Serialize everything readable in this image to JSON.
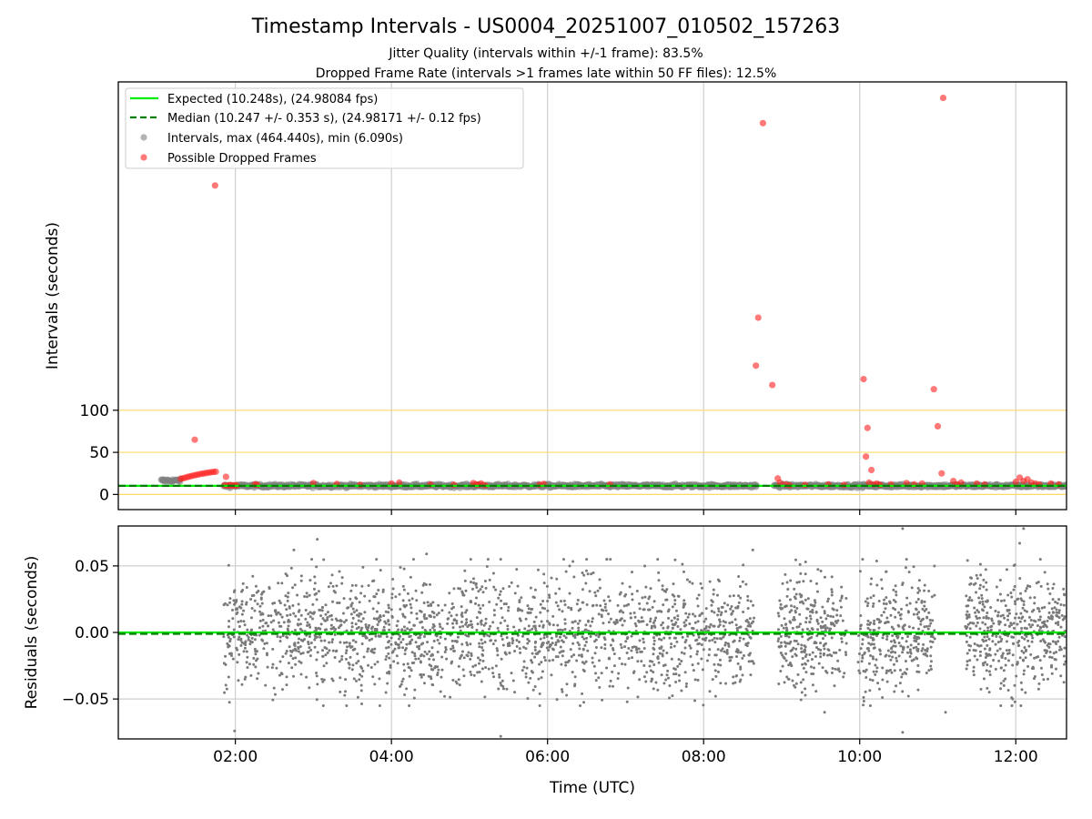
{
  "chart_data": {
    "title": "Timestamp Intervals - US0004_20251007_010502_157263",
    "subtitle_lines": [
      "Jitter Quality (intervals within +/-1 frame): 83.5%",
      "Dropped Frame Rate (intervals >1 frames late within 50 FF files): 12.5%"
    ],
    "xlabel": "Time (UTC)",
    "xlim": [
      0.5,
      12.65
    ],
    "xticks": [
      {
        "value": 2,
        "label": "02:00"
      },
      {
        "value": 4,
        "label": "04:00"
      },
      {
        "value": 6,
        "label": "06:00"
      },
      {
        "value": 8,
        "label": "08:00"
      },
      {
        "value": 10,
        "label": "10:00"
      },
      {
        "value": 12,
        "label": "12:00"
      }
    ],
    "panels": [
      {
        "type": "scatter",
        "ylabel": "Intervals (seconds)",
        "ylim": [
          -18,
          490
        ],
        "yticks": [
          {
            "value": 0,
            "label": "0"
          },
          {
            "value": 50,
            "label": "50"
          },
          {
            "value": 100,
            "label": "100"
          }
        ],
        "hlines": [
          0,
          50,
          100
        ],
        "hline_color": "#ffd966",
        "grid_x": true,
        "legend_placement": "top-left",
        "series": [
          {
            "name": "Expected (10.248s), (24.98084 fps)",
            "kind": "line",
            "style": "solid",
            "color": "#00ee00",
            "y": 10.248
          },
          {
            "name": "Median (10.247 +/- 0.353 s), (24.98171 +/- 0.12 fps)",
            "kind": "line",
            "style": "dashed",
            "color": "#007f00",
            "y": 10.247
          },
          {
            "name": "Intervals, max (464.440s), min (6.090s)",
            "kind": "scatter",
            "color": "#808080",
            "bands": [
              {
                "x_start": 1.05,
                "x_end": 1.3,
                "y": 16.5
              },
              {
                "x_start": 1.85,
                "x_end": 8.68,
                "y": 10.25
              },
              {
                "x_start": 8.9,
                "x_end": 12.65,
                "y": 10.25
              }
            ]
          },
          {
            "name": "Possible Dropped Frames",
            "kind": "scatter",
            "color": "#ff2020",
            "points": [
              [
                1.3,
                18.5
              ],
              [
                1.33,
                19.2
              ],
              [
                1.36,
                20.0
              ],
              [
                1.39,
                20.8
              ],
              [
                1.42,
                21.5
              ],
              [
                1.45,
                22.2
              ],
              [
                1.48,
                22.8
              ],
              [
                1.51,
                23.4
              ],
              [
                1.54,
                24.0
              ],
              [
                1.57,
                24.6
              ],
              [
                1.6,
                25.0
              ],
              [
                1.63,
                25.5
              ],
              [
                1.66,
                26.0
              ],
              [
                1.69,
                26.4
              ],
              [
                1.72,
                26.8
              ],
              [
                1.75,
                27.0
              ],
              [
                1.48,
                65
              ],
              [
                1.74,
                367
              ],
              [
                1.88,
                21
              ],
              [
                1.86,
                11
              ],
              [
                1.9,
                10.5
              ],
              [
                1.93,
                11.2
              ],
              [
                1.96,
                10.4
              ],
              [
                1.99,
                11
              ],
              [
                2.02,
                10.5
              ],
              [
                2.25,
                12
              ],
              [
                2.28,
                11.5
              ],
              [
                3.0,
                13.5
              ],
              [
                3.3,
                12.5
              ],
              [
                3.6,
                11.5
              ],
              [
                4.0,
                13
              ],
              [
                4.1,
                14
              ],
              [
                4.5,
                12
              ],
              [
                4.8,
                11.5
              ],
              [
                5.05,
                13.5
              ],
              [
                5.08,
                12
              ],
              [
                5.12,
                11.5
              ],
              [
                5.15,
                13
              ],
              [
                5.2,
                11
              ],
              [
                5.9,
                11.5
              ],
              [
                5.95,
                12.5
              ],
              [
                6.8,
                12
              ],
              [
                8.67,
                153
              ],
              [
                8.7,
                210
              ],
              [
                8.76,
                441
              ],
              [
                8.88,
                130
              ],
              [
                8.95,
                19
              ],
              [
                8.98,
                14
              ],
              [
                9.05,
                12
              ],
              [
                9.1,
                11
              ],
              [
                9.3,
                11.5
              ],
              [
                9.6,
                12
              ],
              [
                9.8,
                11.5
              ],
              [
                10.05,
                137
              ],
              [
                10.08,
                45
              ],
              [
                10.1,
                79
              ],
              [
                10.15,
                29
              ],
              [
                10.12,
                14
              ],
              [
                10.18,
                12
              ],
              [
                10.22,
                13
              ],
              [
                10.26,
                11.5
              ],
              [
                10.4,
                12
              ],
              [
                10.6,
                13.5
              ],
              [
                10.7,
                12
              ],
              [
                10.8,
                13
              ],
              [
                10.95,
                125
              ],
              [
                11.0,
                81
              ],
              [
                11.05,
                25
              ],
              [
                11.07,
                471
              ],
              [
                11.2,
                16
              ],
              [
                11.25,
                12
              ],
              [
                11.3,
                14
              ],
              [
                11.5,
                13
              ],
              [
                11.6,
                12
              ],
              [
                12.0,
                15
              ],
              [
                12.05,
                20
              ],
              [
                12.1,
                16
              ],
              [
                12.15,
                18
              ],
              [
                12.2,
                14
              ],
              [
                12.25,
                13
              ],
              [
                12.3,
                12
              ],
              [
                12.45,
                13
              ],
              [
                12.55,
                12
              ]
            ]
          }
        ]
      },
      {
        "type": "scatter",
        "ylabel": "Residuals (seconds)",
        "ylim": [
          -0.08,
          0.08
        ],
        "yticks": [
          {
            "value": -0.05,
            "label": "−0.05"
          },
          {
            "value": 0.0,
            "label": "0.00"
          },
          {
            "value": 0.05,
            "label": "0.05"
          }
        ],
        "grid_x": true,
        "grid_y": true,
        "series": [
          {
            "kind": "line",
            "style": "solid",
            "color": "#00ee00",
            "y": 0.0
          },
          {
            "kind": "line",
            "style": "dashed",
            "color": "#007f00",
            "y": -0.001
          },
          {
            "kind": "scatter",
            "color": "#7a7a7a",
            "spread": 0.022,
            "segments": [
              [
                1.85,
                8.65,
                1900
              ],
              [
                8.95,
                9.83,
                290
              ],
              [
                9.98,
                10.97,
                320
              ],
              [
                11.35,
                12.65,
                450
              ]
            ],
            "outliers": [
              [
                1.99,
                -0.074
              ],
              [
                3.05,
                0.07
              ],
              [
                2.75,
                0.062
              ],
              [
                4.45,
                0.059
              ],
              [
                5.4,
                -0.078
              ],
              [
                5.4,
                0.055
              ],
              [
                8.63,
                0.062
              ],
              [
                10.55,
                0.078
              ],
              [
                10.55,
                -0.075
              ],
              [
                11.1,
                -0.06
              ],
              [
                12.05,
                0.067
              ],
              [
                12.1,
                0.078
              ],
              [
                11.95,
                -0.055
              ],
              [
                9.55,
                -0.06
              ],
              [
                10.6,
                0.055
              ]
            ]
          }
        ]
      }
    ]
  }
}
